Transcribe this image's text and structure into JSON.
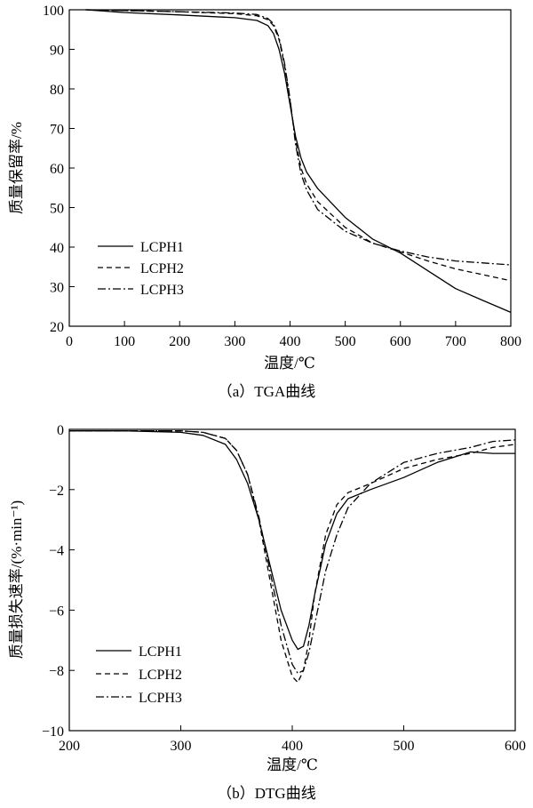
{
  "chart_data": [
    {
      "type": "line",
      "title": "",
      "caption": "（a）TGA曲线",
      "xlabel": "温度/℃",
      "ylabel": "质量保留率/%",
      "xlim": [
        0,
        800
      ],
      "ylim": [
        20,
        100
      ],
      "xticks": [
        0,
        100,
        200,
        300,
        400,
        500,
        600,
        700,
        800
      ],
      "yticks": [
        20,
        30,
        40,
        50,
        60,
        70,
        80,
        90,
        100
      ],
      "legend_position": "bottom-left",
      "series": [
        {
          "name": "LCPH1",
          "dash": "solid",
          "x": [
            30,
            100,
            200,
            300,
            340,
            360,
            370,
            380,
            390,
            400,
            410,
            420,
            430,
            450,
            500,
            550,
            600,
            650,
            700,
            750,
            800
          ],
          "y": [
            100,
            99.3,
            98.7,
            98.0,
            97.3,
            96.0,
            94.0,
            90.0,
            84.0,
            76.0,
            68.0,
            62.5,
            59.0,
            54.8,
            47.5,
            42.0,
            38.5,
            34.0,
            29.5,
            26.5,
            23.5
          ]
        },
        {
          "name": "LCPH2",
          "dash": "dashed",
          "x": [
            30,
            100,
            200,
            300,
            340,
            360,
            370,
            380,
            390,
            400,
            410,
            420,
            430,
            450,
            500,
            550,
            600,
            650,
            700,
            750,
            800
          ],
          "y": [
            100,
            99.8,
            99.5,
            99.0,
            98.5,
            97.5,
            96.0,
            92.5,
            86.0,
            77.0,
            67.0,
            60.0,
            56.0,
            51.5,
            45.0,
            41.0,
            38.8,
            36.5,
            34.5,
            33.0,
            31.5
          ]
        },
        {
          "name": "LCPH3",
          "dash": "dashdot",
          "x": [
            30,
            100,
            200,
            300,
            340,
            360,
            370,
            380,
            390,
            400,
            410,
            420,
            430,
            450,
            500,
            550,
            600,
            650,
            700,
            750,
            800
          ],
          "y": [
            100,
            99.8,
            99.5,
            99.2,
            98.8,
            97.8,
            96.5,
            93.0,
            86.5,
            77.5,
            66.0,
            58.5,
            54.5,
            49.5,
            44.0,
            41.0,
            39.0,
            37.5,
            36.5,
            36.0,
            35.5
          ]
        }
      ]
    },
    {
      "type": "line",
      "title": "",
      "caption": "（b）DTG曲线",
      "xlabel": "温度/℃",
      "ylabel": "质量损失速率/(%·min⁻¹)",
      "xlim": [
        200,
        600
      ],
      "ylim": [
        -10,
        0
      ],
      "xticks": [
        200,
        300,
        400,
        500,
        600
      ],
      "yticks": [
        -10,
        -8,
        -6,
        -4,
        -2,
        0
      ],
      "legend_position": "bottom-left",
      "series": [
        {
          "name": "LCPH1",
          "dash": "solid",
          "x": [
            200,
            250,
            300,
            320,
            340,
            350,
            360,
            370,
            380,
            390,
            400,
            405,
            410,
            415,
            420,
            430,
            440,
            450,
            470,
            500,
            530,
            560,
            580,
            600
          ],
          "y": [
            -0.05,
            -0.05,
            -0.1,
            -0.2,
            -0.5,
            -1.0,
            -1.8,
            -3.0,
            -4.5,
            -6.0,
            -7.0,
            -7.3,
            -7.2,
            -6.5,
            -5.5,
            -3.8,
            -2.8,
            -2.3,
            -2.0,
            -1.6,
            -1.1,
            -0.75,
            -0.8,
            -0.8
          ]
        },
        {
          "name": "LCPH2",
          "dash": "dashed",
          "x": [
            200,
            250,
            300,
            320,
            340,
            350,
            360,
            370,
            380,
            390,
            400,
            405,
            410,
            415,
            420,
            430,
            440,
            450,
            470,
            500,
            530,
            560,
            580,
            600
          ],
          "y": [
            -0.05,
            -0.05,
            -0.05,
            -0.1,
            -0.3,
            -0.7,
            -1.5,
            -3.0,
            -5.0,
            -7.0,
            -8.2,
            -8.4,
            -8.0,
            -7.0,
            -5.5,
            -3.5,
            -2.5,
            -2.1,
            -1.8,
            -1.3,
            -1.0,
            -0.8,
            -0.6,
            -0.5
          ]
        },
        {
          "name": "LCPH3",
          "dash": "dashdot",
          "x": [
            200,
            250,
            300,
            320,
            340,
            350,
            360,
            370,
            380,
            390,
            400,
            405,
            410,
            415,
            420,
            430,
            440,
            450,
            470,
            500,
            530,
            560,
            580,
            600
          ],
          "y": [
            -0.05,
            -0.05,
            -0.05,
            -0.1,
            -0.3,
            -0.7,
            -1.5,
            -2.9,
            -4.7,
            -6.5,
            -7.8,
            -8.1,
            -8.0,
            -7.4,
            -6.5,
            -4.7,
            -3.5,
            -2.6,
            -1.8,
            -1.1,
            -0.8,
            -0.6,
            -0.4,
            -0.35
          ]
        }
      ]
    }
  ]
}
